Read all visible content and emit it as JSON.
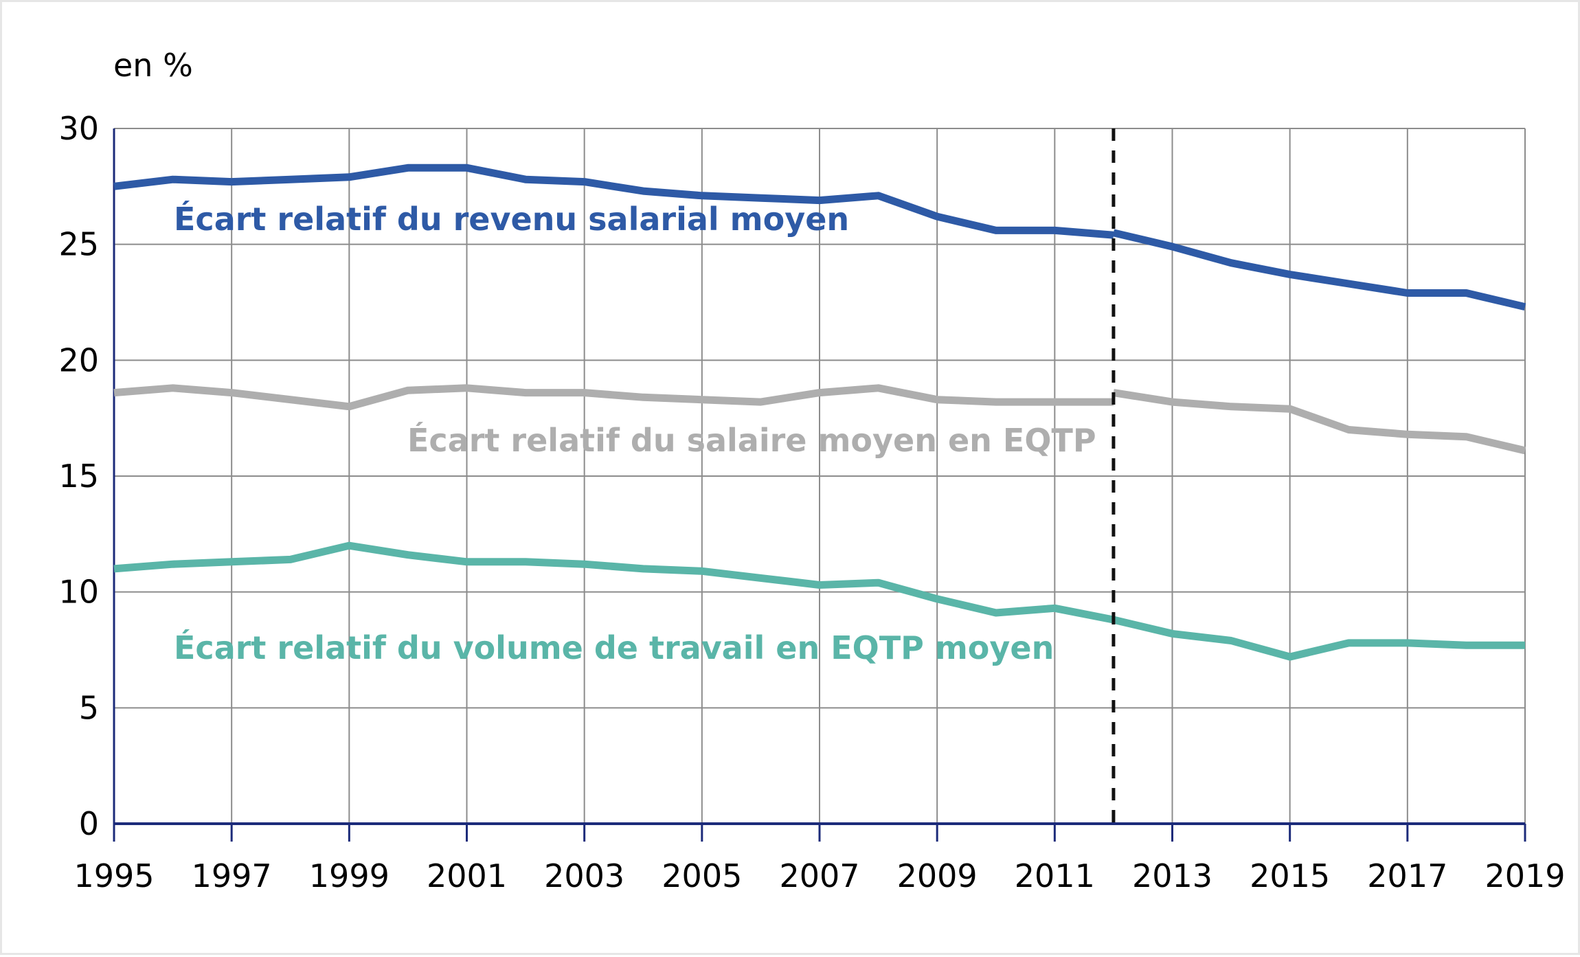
{
  "chart_data": {
    "type": "line",
    "unit_label": "en %",
    "x": [
      1995,
      1996,
      1997,
      1998,
      1999,
      2000,
      2001,
      2002,
      2003,
      2004,
      2005,
      2006,
      2007,
      2008,
      2009,
      2010,
      2011,
      2012,
      2013,
      2014,
      2015,
      2016,
      2017,
      2018,
      2019
    ],
    "x_tick_labels": [
      "1995",
      "1997",
      "1999",
      "2001",
      "2003",
      "2005",
      "2007",
      "2009",
      "2011",
      "2013",
      "2015",
      "2017",
      "2019"
    ],
    "y_tick_labels": [
      "0",
      "5",
      "10",
      "15",
      "20",
      "25",
      "30"
    ],
    "ylim": [
      0,
      30
    ],
    "xlim": [
      1995,
      2019
    ],
    "grid": true,
    "break_marker_x": 2012,
    "series": [
      {
        "name": "Écart relatif du revenu salarial moyen",
        "color": "#2e5aa6",
        "values": [
          27.5,
          27.8,
          27.7,
          27.8,
          27.9,
          28.3,
          28.3,
          27.8,
          27.7,
          27.3,
          27.1,
          27.0,
          26.9,
          27.1,
          26.2,
          25.6,
          25.6,
          25.4,
          null,
          null,
          null,
          null,
          null,
          null,
          null
        ],
        "values_after_break": [
          null,
          null,
          null,
          null,
          null,
          null,
          null,
          null,
          null,
          null,
          null,
          null,
          null,
          null,
          null,
          null,
          null,
          25.5,
          24.9,
          24.2,
          23.7,
          23.3,
          22.9,
          22.9,
          22.3
        ]
      },
      {
        "name": "Écart relatif du salaire moyen en EQTP",
        "color": "#aeaeae",
        "values": [
          18.6,
          18.8,
          18.6,
          18.3,
          18.0,
          18.7,
          18.8,
          18.6,
          18.6,
          18.4,
          18.3,
          18.2,
          18.6,
          18.8,
          18.3,
          18.2,
          18.2,
          18.2,
          null,
          null,
          null,
          null,
          null,
          null,
          null
        ],
        "values_after_break": [
          null,
          null,
          null,
          null,
          null,
          null,
          null,
          null,
          null,
          null,
          null,
          null,
          null,
          null,
          null,
          null,
          null,
          18.6,
          18.2,
          18.0,
          17.9,
          17.0,
          16.8,
          16.7,
          16.1
        ]
      },
      {
        "name": "Écart relatif du volume de travail en EQTP moyen",
        "color": "#5ab5a8",
        "values": [
          11.0,
          11.2,
          11.3,
          11.4,
          12.0,
          11.6,
          11.3,
          11.3,
          11.2,
          11.0,
          10.9,
          10.6,
          10.3,
          10.4,
          9.7,
          9.1,
          9.3,
          8.8,
          null,
          null,
          null,
          null,
          null,
          null,
          null
        ],
        "values_after_break": [
          null,
          null,
          null,
          null,
          null,
          null,
          null,
          null,
          null,
          null,
          null,
          null,
          null,
          null,
          null,
          null,
          null,
          8.8,
          8.2,
          7.9,
          7.2,
          7.8,
          7.8,
          7.7,
          7.7
        ]
      }
    ]
  }
}
